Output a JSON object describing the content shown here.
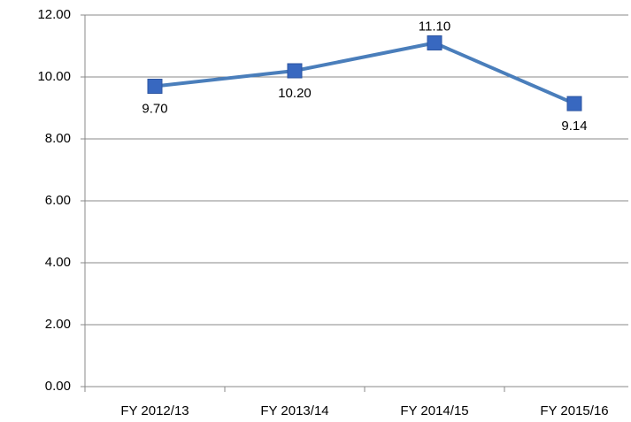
{
  "chart_data": {
    "type": "line",
    "categories": [
      "FY 2012/13",
      "FY 2013/14",
      "FY 2014/15",
      "FY 2015/16"
    ],
    "series": [
      {
        "color": "#4a7ebb",
        "marker_color": "#3868c0",
        "values": [
          9.7,
          10.2,
          11.1,
          9.14
        ],
        "value_labels": [
          "9.70",
          "10.20",
          "11.10",
          "9.14"
        ]
      }
    ],
    "ylim": [
      0,
      12
    ],
    "yticks": [
      {
        "value": 0,
        "label": "0.00"
      },
      {
        "value": 2,
        "label": "2.00"
      },
      {
        "value": 4,
        "label": "4.00"
      },
      {
        "value": 6,
        "label": "6.00"
      },
      {
        "value": 8,
        "label": "8.00"
      },
      {
        "value": 10,
        "label": "10.00"
      },
      {
        "value": 12,
        "label": "12.00"
      }
    ],
    "grid": true
  }
}
